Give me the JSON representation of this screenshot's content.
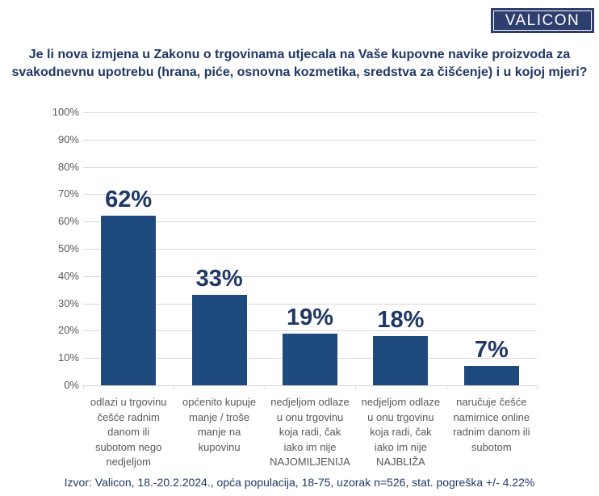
{
  "logo": {
    "text": "VALICON",
    "bg_color": "#2e3e6e",
    "text_color": "#ffffff"
  },
  "title": {
    "text": "Je li nova izmjena u Zakonu o trgovinama utjecala na Vaše kupovne navike proizvoda za\nsvakodnevnu upotrebu (hrana, piće, osnovna kozmetika, sredstva za čišćenje) i u kojoj mjeri?"
  },
  "chart_data": {
    "type": "bar",
    "categories": [
      "odlazi u trgovinu\nčešće radnim\ndanom ili\nsubotom nego\nnedjeljom",
      "općenito kupuje\nmanje / troše\nmanje na\nkupovinu",
      "nedjeljom odlaze\nu onu trgovinu\nkoja radi, čak\niako im nije\nNAJOMILJENIJA",
      "nedjeljom odlaze\nu onu trgovinu\nkoja radi, čak\niako im nije\nNAJBLIŽA",
      "naručuje češće\nnamirnice online\nradnim danom ili\nsubotom"
    ],
    "values": [
      62,
      33,
      19,
      18,
      7
    ],
    "data_labels": [
      "62%",
      "33%",
      "19%",
      "18%",
      "7%"
    ],
    "title": "",
    "xlabel": "",
    "ylabel": "",
    "ylim": [
      0,
      100
    ],
    "y_ticks": [
      {
        "value": 0,
        "label": "0%"
      },
      {
        "value": 10,
        "label": "10%"
      },
      {
        "value": 20,
        "label": "20%"
      },
      {
        "value": 30,
        "label": "30%"
      },
      {
        "value": 40,
        "label": "40%"
      },
      {
        "value": 50,
        "label": "50%"
      },
      {
        "value": 60,
        "label": "60%"
      },
      {
        "value": 70,
        "label": "70%"
      },
      {
        "value": 80,
        "label": "80%"
      },
      {
        "value": 90,
        "label": "90%"
      },
      {
        "value": 100,
        "label": "100%"
      }
    ],
    "grid": true,
    "legend": "none",
    "bar_color": "#1f4a7d",
    "data_label_color": "#1f3864",
    "axis_text_color": "#595959",
    "gridline_color": "#d9d9d9"
  },
  "footer": {
    "text": "Izvor: Valicon, 18.-20.2.2024., opća populacija, 18-75, uzorak n=526, stat. pogreška +/- 4.22%"
  }
}
